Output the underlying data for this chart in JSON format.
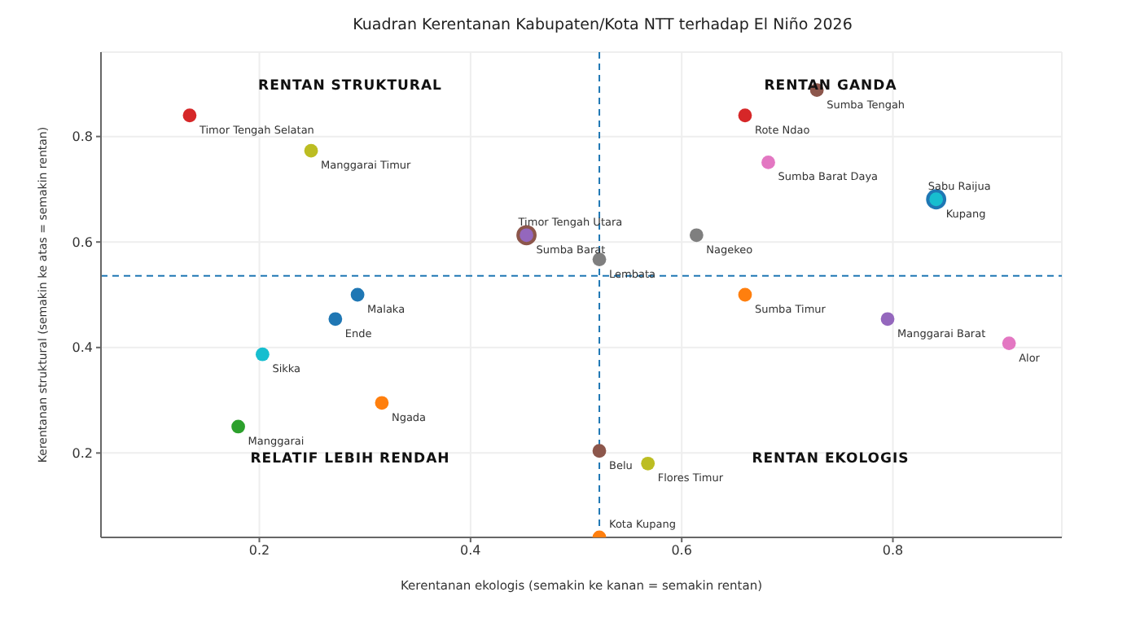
{
  "chart_data": {
    "type": "scatter",
    "title": "Kuadran Kerentanan Kabupaten/Kota NTT terhadap El Niño 2026",
    "xlabel": "Kerentanan ekologis (semakin ke kanan = semakin rentan)",
    "ylabel": "Kerentanan struktural (semakin ke atas = semakin rentan)",
    "xlim": [
      0.05,
      0.96
    ],
    "ylim": [
      0.04,
      0.96
    ],
    "xticks": [
      0.2,
      0.4,
      0.6,
      0.8
    ],
    "yticks": [
      0.2,
      0.4,
      0.6,
      0.8
    ],
    "grid": true,
    "legend": false,
    "marker": "circle",
    "ref_lines": [
      {
        "axis": "x",
        "value": 0.522,
        "color": "#1f77b4",
        "line_style": "dashed"
      },
      {
        "axis": "y",
        "value": 0.536,
        "color": "#1f77b4",
        "line_style": "dashed"
      }
    ],
    "annotations": [
      "RENTAN STRUKTURAL",
      "RENTAN GANDA",
      "RELATIF LEBIH RENDAH",
      "RENTAN EKOLOGIS"
    ],
    "series": [
      {
        "name": "Timor Tengah Selatan",
        "color": "#d62728",
        "x": [
          0.134
        ],
        "values": [
          0.84
        ]
      },
      {
        "name": "Manggarai Timur",
        "color": "#bcbd22",
        "x": [
          0.249
        ],
        "values": [
          0.773
        ]
      },
      {
        "name": "Sumba Barat",
        "color": "#8c564b",
        "x": [
          0.453
        ],
        "values": [
          0.613
        ]
      },
      {
        "name": "Timor Tengah Utara",
        "color": "#9467bd",
        "x": [
          0.453
        ],
        "values": [
          0.613
        ]
      },
      {
        "name": "Lembata",
        "color": "#7f7f7f",
        "x": [
          0.522
        ],
        "values": [
          0.567
        ]
      },
      {
        "name": "Nagekeo",
        "color": "#7f7f7f",
        "x": [
          0.614
        ],
        "values": [
          0.613
        ]
      },
      {
        "name": "Sumba Tengah",
        "color": "#8c564b",
        "x": [
          0.728
        ],
        "values": [
          0.888
        ]
      },
      {
        "name": "Rote Ndao",
        "color": "#d62728",
        "x": [
          0.66
        ],
        "values": [
          0.84
        ]
      },
      {
        "name": "Sumba Barat Daya",
        "color": "#e377c2",
        "x": [
          0.682
        ],
        "values": [
          0.751
        ]
      },
      {
        "name": "Kupang",
        "color": "#1f77b4",
        "x": [
          0.841
        ],
        "values": [
          0.681
        ]
      },
      {
        "name": "Sabu Raijua",
        "color": "#17becf",
        "x": [
          0.841
        ],
        "values": [
          0.681
        ]
      },
      {
        "name": "Malaka",
        "color": "#1f77b4",
        "x": [
          0.293
        ],
        "values": [
          0.5
        ]
      },
      {
        "name": "Ende",
        "color": "#1f77b4",
        "x": [
          0.272
        ],
        "values": [
          0.454
        ]
      },
      {
        "name": "Sikka",
        "color": "#17becf",
        "x": [
          0.203
        ],
        "values": [
          0.387
        ]
      },
      {
        "name": "Ngada",
        "color": "#ff7f0e",
        "x": [
          0.316
        ],
        "values": [
          0.295
        ]
      },
      {
        "name": "Manggarai",
        "color": "#2ca02c",
        "x": [
          0.18
        ],
        "values": [
          0.25
        ]
      },
      {
        "name": "Sumba Timur",
        "color": "#ff7f0e",
        "x": [
          0.66
        ],
        "values": [
          0.5
        ]
      },
      {
        "name": "Manggarai Barat",
        "color": "#9467bd",
        "x": [
          0.795
        ],
        "values": [
          0.454
        ]
      },
      {
        "name": "Alor",
        "color": "#e377c2",
        "x": [
          0.91
        ],
        "values": [
          0.408
        ]
      },
      {
        "name": "Belu",
        "color": "#8c564b",
        "x": [
          0.522
        ],
        "values": [
          0.204
        ]
      },
      {
        "name": "Flores Timur",
        "color": "#bcbd22",
        "x": [
          0.568
        ],
        "values": [
          0.18
        ]
      },
      {
        "name": "Kota Kupang",
        "color": "#ff7f0e",
        "x": [
          0.522
        ],
        "values": [
          0.04
        ]
      }
    ]
  }
}
